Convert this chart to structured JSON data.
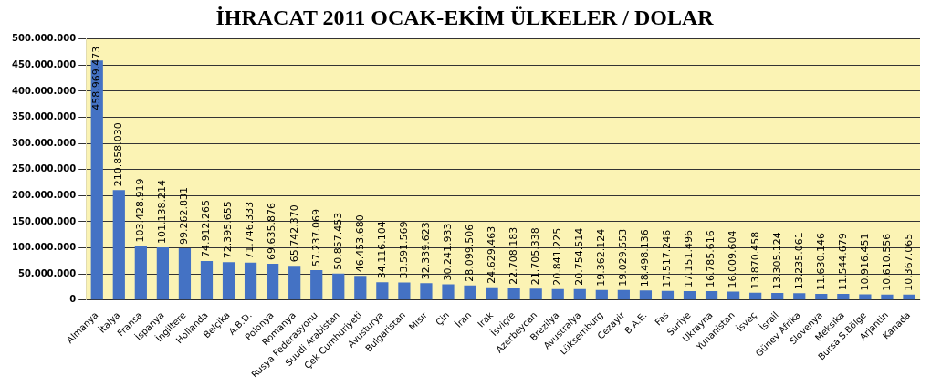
{
  "chart_data": {
    "type": "bar",
    "title": "İHRACAT 2011 OCAK-EKİM ÜLKELER / DOLAR",
    "categories": [
      "Almanya",
      "İtalya",
      "Fransa",
      "İspanya",
      "İngiltere",
      "Hollanda",
      "Belçika",
      "A.B.D.",
      "Polonya",
      "Romanya",
      "Rusya Federasyonu",
      "Suudi Arabistan",
      "Çek Cumhuriyeti",
      "Avusturya",
      "Bulgaristan",
      "Mısır",
      "Çin",
      "İran",
      "Irak",
      "İsviçre",
      "Azerbeycan",
      "Brezilya",
      "Avustralya",
      "Lüksemburg",
      "Cezayir",
      "B.A.E.",
      "Fas",
      "Suriye",
      "Ukrayna",
      "Yunanistan",
      "İsveç",
      "İsrail",
      "Güney Afrika",
      "Slovenya",
      "Meksika",
      "Bursa S.Bölge",
      "Arjantin",
      "Kanada"
    ],
    "values": [
      458969473,
      210858030,
      103428919,
      101138214,
      99262831,
      74912265,
      72395655,
      71746333,
      69635876,
      65742370,
      57237069,
      50857453,
      46453680,
      34116104,
      33591569,
      32339623,
      30241933,
      28099506,
      24629463,
      22708183,
      21705338,
      20841225,
      20754514,
      19362124,
      19029553,
      18498136,
      17517246,
      17151496,
      16785616,
      16009604,
      13870458,
      13305124,
      13235061,
      11630146,
      11544679,
      10916451,
      10610556,
      10367065
    ],
    "value_labels": [
      "458.969.473",
      "210.858.030",
      "103.428.919",
      "101.138.214",
      "99.262.831",
      "74.912.265",
      "72.395.655",
      "71.746.333",
      "69.635.876",
      "65.742.370",
      "57.237.069",
      "50.857.453",
      "46.453.680",
      "34.116.104",
      "33.591.569",
      "32.339.623",
      "30.241.933",
      "28.099.506",
      "24.629.463",
      "22.708.183",
      "21.705.338",
      "20.841.225",
      "20.754.514",
      "19.362.124",
      "19.029.553",
      "18.498.136",
      "17.517.246",
      "17.151.496",
      "16.785.616",
      "16.009.604",
      "13.870.458",
      "13.305.124",
      "13.235.061",
      "11.630.146",
      "11.544.679",
      "10.916.451",
      "10.610.556",
      "10.367.065"
    ],
    "color": "#4472c4",
    "ylim": [
      0,
      500000000
    ],
    "yticks": [
      {
        "value": 0,
        "label": "0"
      },
      {
        "value": 50000000,
        "label": "50.000.000"
      },
      {
        "value": 100000000,
        "label": "100.000.000"
      },
      {
        "value": 150000000,
        "label": "150.000.000"
      },
      {
        "value": 200000000,
        "label": "200.000.000"
      },
      {
        "value": 250000000,
        "label": "250.000.000"
      },
      {
        "value": 300000000,
        "label": "300.000.000"
      },
      {
        "value": 350000000,
        "label": "350.000.000"
      },
      {
        "value": 400000000,
        "label": "400.000.000"
      },
      {
        "value": 450000000,
        "label": "450.000.000"
      },
      {
        "value": 500000000,
        "label": "500.000.000"
      }
    ],
    "grid": "y"
  }
}
